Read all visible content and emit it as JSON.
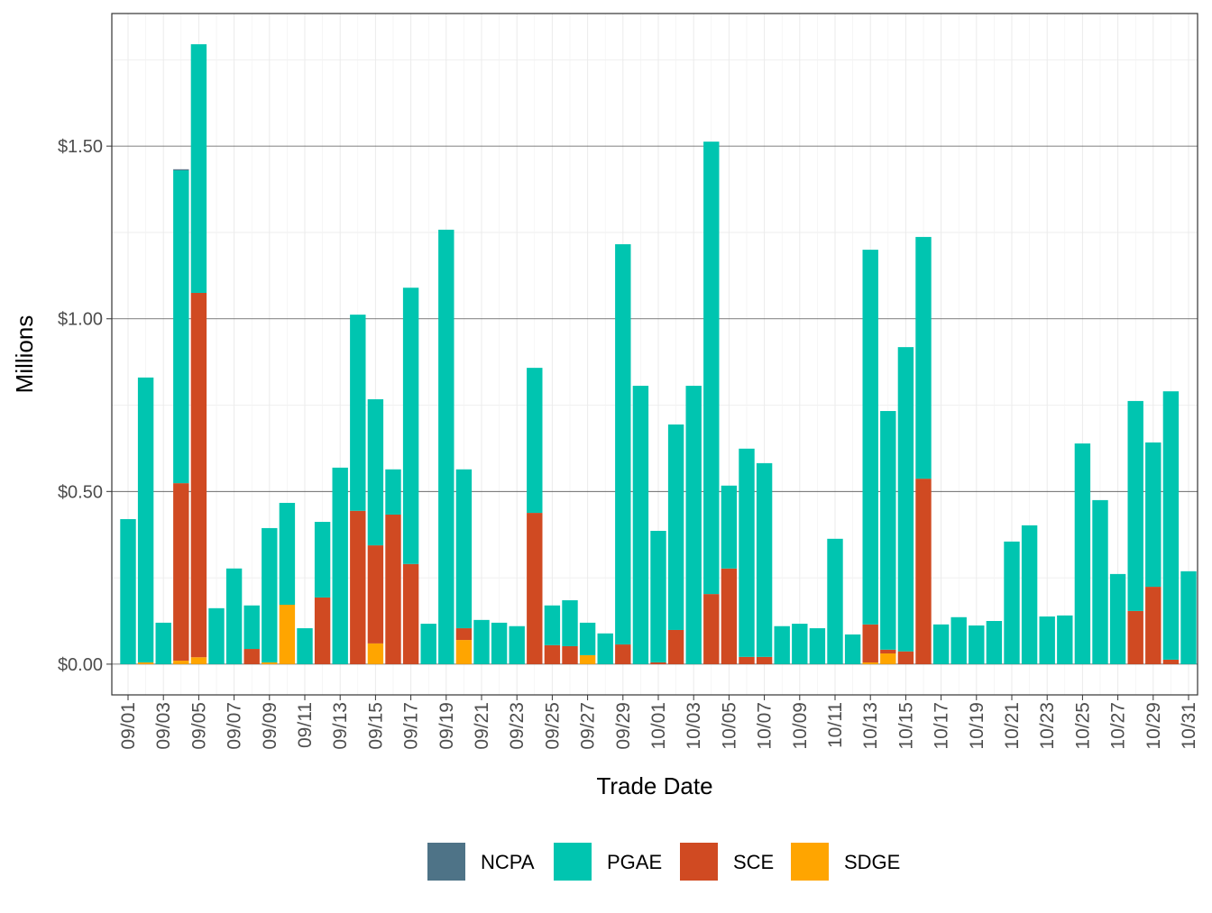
{
  "chart_data": {
    "type": "bar",
    "stacked": true,
    "xlabel": "Trade Date",
    "ylabel": "Millions",
    "ylim": [
      -0.089,
      1.884
    ],
    "y_ticks": [
      0,
      0.5,
      1.0,
      1.5
    ],
    "y_tick_labels": [
      "$0.00",
      "$0.50",
      "$1.00",
      "$1.50"
    ],
    "grid": true,
    "legend_position": "bottom",
    "categories": [
      "09/01",
      "09/02",
      "09/03",
      "09/04",
      "09/05",
      "09/06",
      "09/07",
      "09/08",
      "09/09",
      "09/10",
      "09/11",
      "09/12",
      "09/13",
      "09/14",
      "09/15",
      "09/16",
      "09/17",
      "09/18",
      "09/19",
      "09/20",
      "09/21",
      "09/22",
      "09/23",
      "09/24",
      "09/25",
      "09/26",
      "09/27",
      "09/28",
      "09/29",
      "09/30",
      "10/01",
      "10/02",
      "10/03",
      "10/04",
      "10/05",
      "10/06",
      "10/07",
      "10/08",
      "10/09",
      "10/10",
      "10/11",
      "10/12",
      "10/13",
      "10/14",
      "10/15",
      "10/16",
      "10/17",
      "10/18",
      "10/19",
      "10/20",
      "10/21",
      "10/22",
      "10/23",
      "10/24",
      "10/25",
      "10/26",
      "10/27",
      "10/28",
      "10/29",
      "10/30",
      "10/31"
    ],
    "x_tick_labels": [
      "09/01",
      "09/03",
      "09/05",
      "09/07",
      "09/09",
      "09/11",
      "09/13",
      "09/15",
      "09/17",
      "09/19",
      "09/21",
      "09/23",
      "09/25",
      "09/27",
      "09/29",
      "10/01",
      "10/03",
      "10/05",
      "10/07",
      "10/09",
      "10/11",
      "10/13",
      "10/15",
      "10/17",
      "10/19",
      "10/21",
      "10/23",
      "10/25",
      "10/27",
      "10/29",
      "10/31"
    ],
    "series": [
      {
        "name": "SDGE",
        "color": "#FFA500",
        "values": [
          0,
          0.005,
          0,
          0.01,
          0.02,
          0,
          0,
          0,
          0.005,
          0.172,
          0,
          0,
          0,
          0,
          0.06,
          0,
          0,
          0,
          0,
          0.07,
          0,
          0,
          0,
          0,
          0,
          0,
          0.026,
          0,
          0,
          0,
          0,
          0,
          0,
          0,
          0,
          0,
          0,
          0,
          0,
          0,
          0,
          0,
          0.005,
          0.031,
          0,
          0,
          0,
          0,
          0,
          0,
          0,
          0,
          0,
          0,
          0,
          0,
          0,
          0,
          0,
          0,
          0
        ]
      },
      {
        "name": "SCE",
        "color": "#D04A22",
        "values": [
          0,
          0,
          0,
          0.514,
          1.055,
          0,
          0,
          0.044,
          0,
          0,
          0,
          0.193,
          0,
          0.444,
          0.284,
          0.433,
          0.29,
          0,
          0,
          0.034,
          0,
          0,
          0,
          0.438,
          0.055,
          0.052,
          0,
          0,
          0.057,
          0,
          0.005,
          0.099,
          0,
          0.203,
          0.277,
          0.021,
          0.021,
          0,
          0,
          0,
          0,
          0,
          0.11,
          0.011,
          0.037,
          0.537,
          0,
          0,
          0,
          0,
          0,
          0,
          0,
          0,
          0,
          0,
          0,
          0.154,
          0.224,
          0.013,
          0
        ]
      },
      {
        "name": "PGAE",
        "color": "#00C5B0",
        "values": [
          0.42,
          0.825,
          0.12,
          0.906,
          0.72,
          0.162,
          0.277,
          0.126,
          0.389,
          0.295,
          0.104,
          0.219,
          0.569,
          0.568,
          0.423,
          0.131,
          0.8,
          0.117,
          1.258,
          0.46,
          0.128,
          0.12,
          0.11,
          0.42,
          0.115,
          0.133,
          0.094,
          0.089,
          1.159,
          0.806,
          0.381,
          0.595,
          0.806,
          1.31,
          0.24,
          0.603,
          0.561,
          0.11,
          0.117,
          0.104,
          0.363,
          0.086,
          1.085,
          0.691,
          0.881,
          0.7,
          0.115,
          0.136,
          0.112,
          0.125,
          0.355,
          0.402,
          0.138,
          0.141,
          0.639,
          0.475,
          0.261,
          0.608,
          0.418,
          0.777,
          0.269
        ]
      },
      {
        "name": "NCPA",
        "color": "#4E7387",
        "values": [
          0,
          0,
          0,
          0.003,
          0,
          0,
          0,
          0,
          0,
          0,
          0,
          0,
          0,
          0,
          0,
          0,
          0,
          0,
          0,
          0,
          0,
          0,
          0,
          0,
          0,
          0,
          0,
          0,
          0,
          0,
          0,
          0,
          0,
          0,
          0,
          0,
          0,
          0,
          0,
          0,
          0,
          0,
          0,
          0,
          0,
          0,
          0,
          0,
          0,
          0,
          0,
          0,
          0,
          0,
          0,
          0,
          0,
          0,
          0,
          0,
          0
        ]
      }
    ],
    "legend_order": [
      "NCPA",
      "PGAE",
      "SCE",
      "SDGE"
    ]
  }
}
